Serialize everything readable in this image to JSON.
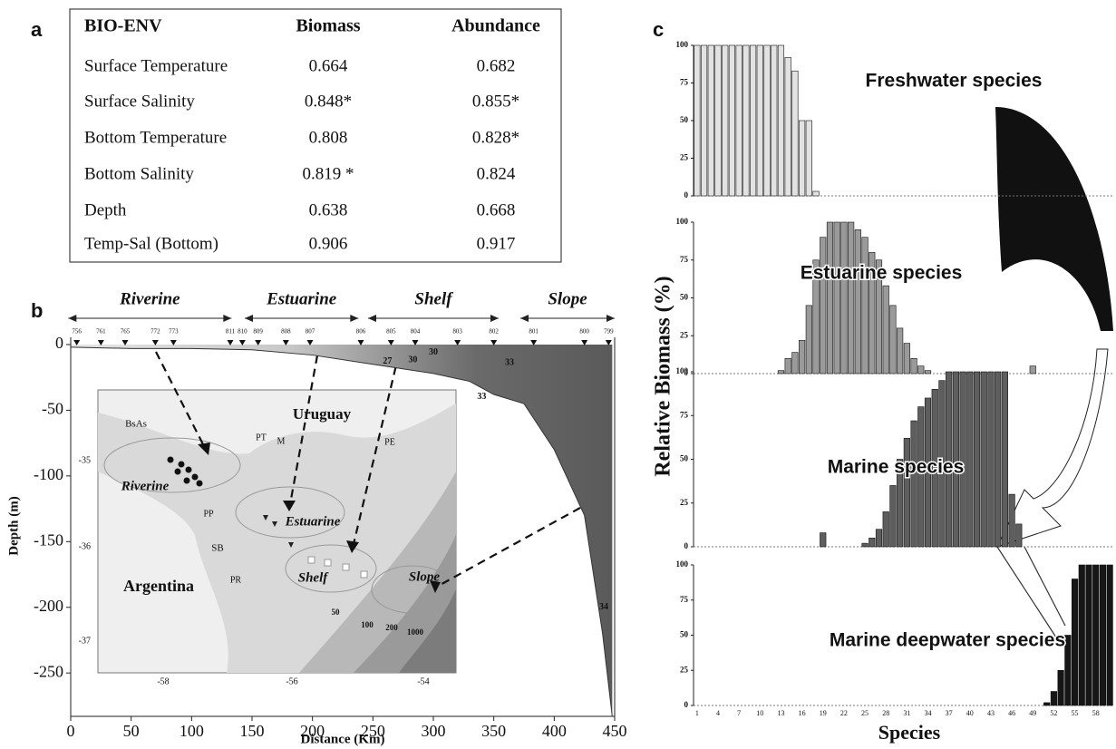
{
  "panel_labels": {
    "a": "a",
    "b": "b",
    "c": "c"
  },
  "table": {
    "header": [
      "BIO-ENV",
      "Biomass",
      "Abundance"
    ],
    "rows": [
      [
        "Surface Temperature",
        "0.664",
        "0.682"
      ],
      [
        "Surface Salinity",
        "0.848*",
        "0.855*"
      ],
      [
        "Bottom Temperature",
        "0.808",
        "0.828*"
      ],
      [
        "Bottom Salinity",
        "0.819 *",
        "0.824"
      ],
      [
        "Depth",
        "0.638",
        "0.668"
      ],
      [
        "Temp-Sal  (Bottom)",
        "0.906",
        "0.917"
      ]
    ]
  },
  "chart_data": [
    {
      "type": "section",
      "x_label": "Distance (Km)",
      "y_label": "Depth (m)",
      "xlim": [
        0,
        450
      ],
      "ylim": [
        -283,
        5.5
      ],
      "xticks": [
        0,
        50,
        100,
        150,
        200,
        250,
        300,
        350,
        400,
        450
      ],
      "yticks": [
        0,
        -50,
        -100,
        -150,
        -200,
        -250
      ],
      "x": [
        0,
        50,
        100,
        150,
        200,
        250,
        300,
        330,
        350,
        375,
        400,
        425,
        440,
        448
      ],
      "values": [
        -2,
        -3,
        -3,
        -4,
        -8,
        -15,
        -22,
        -28,
        -38,
        -45,
        -80,
        -130,
        -220,
        -283
      ],
      "color": "#5a5a5a",
      "zones": [
        {
          "name": "Riverine",
          "range": [
            -2,
            133
          ]
        },
        {
          "name": "Estuarine",
          "range": [
            144,
            238
          ]
        },
        {
          "name": "Shelf",
          "range": [
            246,
            354
          ]
        },
        {
          "name": "Slope",
          "range": [
            372,
            450
          ]
        }
      ],
      "stations": {
        "labels": [
          "756",
          "761",
          "765",
          "772",
          "773",
          "811",
          "810",
          "809",
          "808",
          "807",
          "806",
          "805",
          "804",
          "803",
          "802",
          "801",
          "800",
          "799"
        ],
        "x": [
          5,
          25,
          45,
          70,
          85,
          132,
          142,
          155,
          178,
          198,
          240,
          265,
          285,
          320,
          350,
          383,
          425,
          445
        ]
      },
      "isohalines": {
        "labels": [
          "27",
          "30",
          "30",
          "33",
          "33",
          "34"
        ],
        "x": [
          262,
          283,
          300,
          340,
          363,
          441
        ],
        "y": [
          -13,
          -12,
          -6,
          -40,
          -14,
          -200
        ]
      },
      "map": {
        "labels": [
          "BsAs",
          "Uruguay",
          "PT",
          "M",
          "PE",
          "Riverine",
          "PP",
          "Estuarine",
          "SB",
          "Shelf",
          "Slope",
          "Argentina",
          "PR",
          "50",
          "100",
          "200",
          "1000"
        ],
        "lat_ticks": [
          -35,
          -36,
          -37
        ],
        "lon_ticks": [
          -58,
          -56,
          -54
        ]
      }
    },
    {
      "type": "bar",
      "y_label": "Relative Biomass (%)",
      "x_label": "Species",
      "xlim": [
        0.5,
        60.5
      ],
      "ylim": [
        0,
        100
      ],
      "yticks": [
        0,
        25,
        50,
        75,
        100
      ],
      "xticks": [
        1,
        4,
        7,
        10,
        13,
        16,
        19,
        22,
        25,
        28,
        31,
        34,
        37,
        40,
        43,
        46,
        49,
        52,
        55,
        58
      ],
      "x": [
        1,
        2,
        3,
        4,
        5,
        6,
        7,
        8,
        9,
        10,
        11,
        12,
        13,
        14,
        15,
        16,
        17,
        18,
        19,
        20,
        21,
        22,
        23,
        24,
        25,
        26,
        27,
        28,
        29,
        30,
        31,
        32,
        33,
        34,
        35,
        36,
        37,
        38,
        39,
        40,
        41,
        42,
        43,
        44,
        45,
        46,
        47,
        48,
        49,
        50,
        51,
        52,
        53,
        54,
        55,
        56,
        57,
        58,
        59,
        60
      ],
      "series": [
        {
          "name": "Freshwater species",
          "color": "#e2e2e2",
          "values": [
            100,
            100,
            100,
            100,
            100,
            100,
            100,
            100,
            100,
            100,
            100,
            100,
            100,
            92,
            83,
            50,
            50,
            3,
            0,
            0,
            0,
            0,
            0,
            0,
            0,
            0,
            0,
            0,
            0,
            0,
            0,
            0,
            0,
            0,
            0,
            0,
            0,
            0,
            0,
            0,
            0,
            0,
            0,
            0,
            0,
            0,
            0,
            0,
            0,
            0,
            0,
            0,
            0,
            0,
            0,
            0,
            0,
            0,
            0,
            0
          ]
        },
        {
          "name": "Estuarine species",
          "color": "#9a9a9a",
          "values": [
            0,
            0,
            0,
            0,
            0,
            0,
            0,
            0,
            0,
            0,
            0,
            0,
            2,
            10,
            14,
            22,
            45,
            75,
            90,
            100,
            100,
            100,
            100,
            95,
            90,
            80,
            75,
            58,
            45,
            30,
            20,
            10,
            5,
            2,
            0,
            0,
            0,
            0,
            0,
            0,
            0,
            0,
            0,
            0,
            0,
            0,
            0,
            0,
            5,
            0,
            0,
            0,
            0,
            0,
            0,
            0,
            0,
            0,
            0,
            0
          ]
        },
        {
          "name": "Marine species",
          "color": "#5e5e5e",
          "values": [
            0,
            0,
            0,
            0,
            0,
            0,
            0,
            0,
            0,
            0,
            0,
            0,
            0,
            0,
            0,
            0,
            0,
            0,
            8,
            0,
            0,
            0,
            0,
            0,
            2,
            5,
            10,
            20,
            35,
            50,
            62,
            72,
            80,
            85,
            90,
            95,
            100,
            100,
            100,
            100,
            100,
            100,
            100,
            100,
            100,
            30,
            13,
            0,
            0,
            0,
            0,
            0,
            0,
            0,
            0,
            0,
            0,
            0,
            0,
            0
          ]
        },
        {
          "name": "Marine deepwater species",
          "color": "#161616",
          "values": [
            0,
            0,
            0,
            0,
            0,
            0,
            0,
            0,
            0,
            0,
            0,
            0,
            0,
            0,
            0,
            0,
            0,
            0,
            0,
            0,
            0,
            0,
            0,
            0,
            0,
            0,
            0,
            0,
            0,
            0,
            0,
            0,
            0,
            0,
            0,
            0,
            0,
            0,
            0,
            0,
            0,
            0,
            0,
            0,
            0,
            0,
            0,
            0,
            0,
            0,
            2,
            10,
            25,
            50,
            90,
            100,
            100,
            100,
            100,
            100
          ]
        }
      ]
    }
  ]
}
